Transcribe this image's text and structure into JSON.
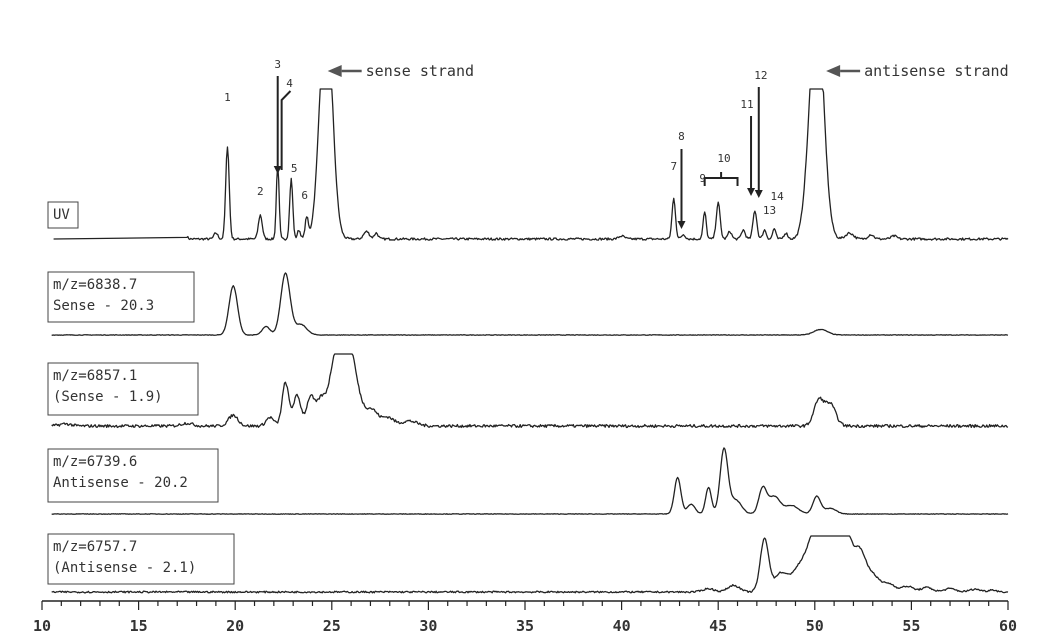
{
  "chart_data": {
    "type": "line",
    "title": "",
    "xlabel": "",
    "ylabel": "",
    "xlim": [
      10,
      60
    ],
    "x_ticks": [
      10,
      15,
      20,
      25,
      30,
      35,
      40,
      45,
      50,
      55,
      60
    ],
    "minor_tick_step": 1,
    "grid": false,
    "legend": "none",
    "series": [
      {
        "label_lines": [
          "UV"
        ],
        "baseline_noise": 0.015,
        "clip": 1.0,
        "peaks": [
          [
            16.8,
            0.06,
            0.12
          ],
          [
            17.4,
            0.03,
            0.1
          ],
          [
            19.0,
            0.04,
            0.1
          ],
          [
            19.6,
            0.62,
            0.09
          ],
          [
            21.3,
            0.16,
            0.1
          ],
          [
            22.2,
            0.5,
            0.07
          ],
          [
            22.9,
            0.4,
            0.08
          ],
          [
            23.3,
            0.06,
            0.08
          ],
          [
            23.7,
            0.14,
            0.08
          ],
          [
            24.7,
            1.6,
            0.32
          ],
          [
            26.8,
            0.05,
            0.15
          ],
          [
            27.3,
            0.04,
            0.1
          ],
          [
            40.0,
            0.02,
            0.15
          ],
          [
            42.7,
            0.27,
            0.09
          ],
          [
            43.2,
            0.03,
            0.1
          ],
          [
            44.3,
            0.18,
            0.08
          ],
          [
            45.0,
            0.24,
            0.1
          ],
          [
            45.6,
            0.05,
            0.1
          ],
          [
            46.3,
            0.06,
            0.1
          ],
          [
            46.9,
            0.19,
            0.1
          ],
          [
            47.4,
            0.06,
            0.09
          ],
          [
            47.9,
            0.07,
            0.08
          ],
          [
            48.5,
            0.04,
            0.1
          ],
          [
            49.5,
            0.06,
            0.2
          ],
          [
            50.1,
            1.6,
            0.35
          ],
          [
            51.8,
            0.04,
            0.2
          ],
          [
            52.9,
            0.03,
            0.15
          ],
          [
            54.1,
            0.02,
            0.15
          ]
        ]
      },
      {
        "label_lines": [
          "m/z=6838.7",
          "Sense - 20.3"
        ],
        "baseline_noise": 0.008,
        "clip": 1.0,
        "peaks": [
          [
            19.9,
            0.7,
            0.22
          ],
          [
            21.6,
            0.12,
            0.2
          ],
          [
            22.6,
            0.88,
            0.24
          ],
          [
            23.4,
            0.15,
            0.3
          ],
          [
            50.3,
            0.08,
            0.35
          ]
        ]
      },
      {
        "label_lines": [
          "m/z=6857.1",
          "(Sense - 1.9)"
        ],
        "baseline_noise": 0.04,
        "clip": 1.0,
        "peaks": [
          [
            11.2,
            0.03,
            0.3
          ],
          [
            17.5,
            0.04,
            0.3
          ],
          [
            19.9,
            0.15,
            0.25
          ],
          [
            21.8,
            0.12,
            0.2
          ],
          [
            22.6,
            0.6,
            0.17
          ],
          [
            23.2,
            0.42,
            0.2
          ],
          [
            23.9,
            0.4,
            0.2
          ],
          [
            24.4,
            0.25,
            0.2
          ],
          [
            25.6,
            1.5,
            0.55
          ],
          [
            27.1,
            0.2,
            0.3
          ],
          [
            27.9,
            0.12,
            0.3
          ],
          [
            29.0,
            0.07,
            0.4
          ],
          [
            50.2,
            0.35,
            0.25
          ],
          [
            50.8,
            0.3,
            0.28
          ]
        ]
      },
      {
        "label_lines": [
          "m/z=6739.6",
          "Antisense - 20.2"
        ],
        "baseline_noise": 0.008,
        "clip": 1.0,
        "peaks": [
          [
            42.9,
            0.52,
            0.17
          ],
          [
            43.6,
            0.14,
            0.2
          ],
          [
            44.5,
            0.38,
            0.15
          ],
          [
            45.3,
            0.92,
            0.2
          ],
          [
            45.9,
            0.2,
            0.3
          ],
          [
            47.3,
            0.36,
            0.2
          ],
          [
            47.9,
            0.25,
            0.3
          ],
          [
            48.8,
            0.12,
            0.35
          ],
          [
            50.1,
            0.25,
            0.2
          ],
          [
            50.8,
            0.08,
            0.3
          ]
        ]
      },
      {
        "label_lines": [
          "m/z=6757.7",
          "(Antisense - 2.1)"
        ],
        "baseline_noise": 0.03,
        "clip": 1.0,
        "peaks": [
          [
            44.5,
            0.06,
            0.3
          ],
          [
            45.8,
            0.12,
            0.3
          ],
          [
            47.4,
            0.95,
            0.22
          ],
          [
            48.2,
            0.3,
            0.3
          ],
          [
            49.0,
            0.2,
            0.4
          ],
          [
            50.8,
            2.0,
            0.85
          ],
          [
            52.4,
            0.4,
            0.25
          ],
          [
            53.0,
            0.25,
            0.3
          ],
          [
            53.8,
            0.15,
            0.35
          ],
          [
            54.8,
            0.1,
            0.3
          ],
          [
            55.8,
            0.08,
            0.3
          ],
          [
            57.0,
            0.06,
            0.3
          ],
          [
            58.3,
            0.05,
            0.3
          ],
          [
            59.2,
            0.04,
            0.2
          ]
        ]
      }
    ],
    "annotations": {
      "peak_numbers": [
        {
          "text": "1",
          "x": 19.6
        },
        {
          "text": "2",
          "x": 21.3
        },
        {
          "text": "3",
          "x": 22.2
        },
        {
          "text": "4",
          "x": 22.5
        },
        {
          "text": "5",
          "x": 22.9
        },
        {
          "text": "6",
          "x": 23.7
        },
        {
          "text": "7",
          "x": 42.7
        },
        {
          "text": "8",
          "x": 43.1
        },
        {
          "text": "9",
          "x": 44.3
        },
        {
          "text": "10",
          "x": 45.3
        },
        {
          "text": "11",
          "x": 46.8
        },
        {
          "text": "12",
          "x": 47.0
        },
        {
          "text": "13",
          "x": 47.5
        },
        {
          "text": "14",
          "x": 48.0
        }
      ],
      "strand_labels": [
        {
          "text": "sense strand",
          "x": 25.2
        },
        {
          "text": "antisense strand",
          "x": 51.0
        }
      ]
    }
  }
}
